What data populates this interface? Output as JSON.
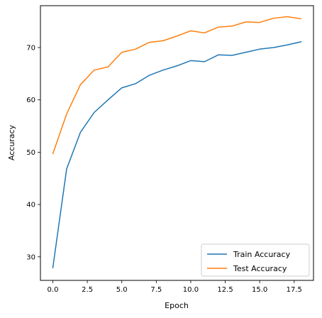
{
  "chart_data": {
    "type": "line",
    "title": "",
    "xlabel": "Epoch",
    "ylabel": "Accuracy",
    "xlim": [
      -0.9,
      18.9
    ],
    "ylim": [
      25.5,
      78.0
    ],
    "xticks": [
      0.0,
      2.5,
      5.0,
      7.5,
      10.0,
      12.5,
      15.0,
      17.5
    ],
    "xtick_labels": [
      "0.0",
      "2.5",
      "5.0",
      "7.5",
      "10.0",
      "12.5",
      "15.0",
      "17.5"
    ],
    "yticks": [
      30,
      40,
      50,
      60,
      70
    ],
    "ytick_labels": [
      "30",
      "40",
      "50",
      "60",
      "70"
    ],
    "grid": false,
    "legend_position": "bottom-right",
    "x": [
      0,
      1,
      2,
      3,
      4,
      5,
      6,
      7,
      8,
      9,
      10,
      11,
      12,
      13,
      14,
      15,
      16,
      17,
      18
    ],
    "series": [
      {
        "name": "Train Accuracy",
        "color": "#1f77b4",
        "values": [
          27.9,
          46.8,
          53.8,
          57.6,
          60.0,
          62.3,
          63.1,
          64.7,
          65.7,
          66.5,
          67.5,
          67.3,
          68.6,
          68.5,
          69.1,
          69.7,
          70.0,
          70.5,
          71.1
        ]
      },
      {
        "name": "Test Accuracy",
        "color": "#ff7f0e",
        "values": [
          49.7,
          57.3,
          62.9,
          65.7,
          66.3,
          69.1,
          69.7,
          71.0,
          71.3,
          72.2,
          73.2,
          72.8,
          73.9,
          74.1,
          74.9,
          74.8,
          75.6,
          75.9,
          75.5
        ]
      }
    ]
  }
}
